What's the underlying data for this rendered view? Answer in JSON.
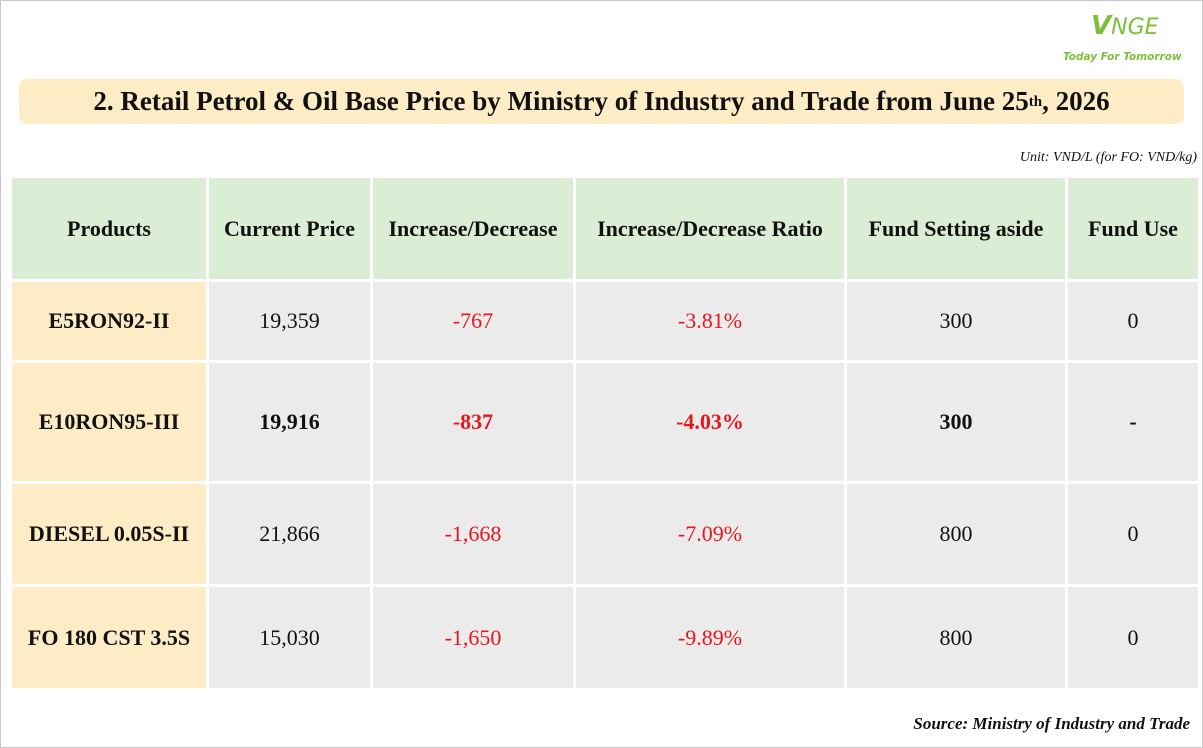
{
  "logo": {
    "mark_v": "V",
    "mark_rest": "NGE",
    "tagline": "Today For Tomorrow"
  },
  "title": {
    "main": "2. Retail Petrol & Oil Base Price by Ministry of Industry and Trade from June 25",
    "sup": "th",
    "tail": ", 2026"
  },
  "unit_note": "Unit: VND/L (for FO: VND/kg)",
  "table": {
    "headers": [
      "Products",
      "Current Price",
      "Increase/Decrease",
      "Increase/Decrease Ratio",
      "Fund Setting aside",
      "Fund Use"
    ],
    "rows": [
      {
        "product": "E5RON92-II",
        "price": "19,359",
        "change": "-767",
        "ratio": "-3.81%",
        "fund_aside": "300",
        "fund_use": "0"
      },
      {
        "product": "E10RON95-III",
        "price": "19,916",
        "change": "-837",
        "ratio": "-4.03%",
        "fund_aside": "300",
        "fund_use": "-"
      },
      {
        "product": "DIESEL 0.05S-II",
        "price": "21,866",
        "change": "-1,668",
        "ratio": "-7.09%",
        "fund_aside": "800",
        "fund_use": "0"
      },
      {
        "product": "FO 180 CST 3.5S",
        "price": "15,030",
        "change": "-1,650",
        "ratio": "-9.89%",
        "fund_aside": "800",
        "fund_use": "0"
      }
    ]
  },
  "source": "Source: Ministry of Industry and Trade",
  "colors": {
    "title_bg": "#fdecc6",
    "header_bg": "#dcedd6",
    "cell_bg": "#ebebeb",
    "negative": "#e8151b",
    "brand": "#7cbf3a"
  }
}
